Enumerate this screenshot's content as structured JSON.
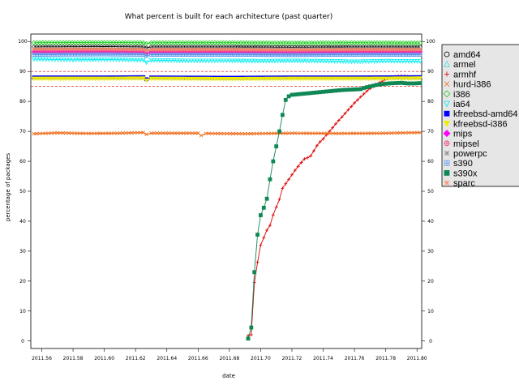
{
  "chart_data": {
    "type": "line",
    "title": "What percent is built for each architecture (past quarter)",
    "xlabel": "date",
    "ylabel": "percentage of packages",
    "xlim": [
      2011.553,
      2011.803
    ],
    "ylim": [
      -2.5,
      102.5
    ],
    "x_ticks": [
      "2011.56",
      "2011.58",
      "2011.60",
      "2011.62",
      "2011.64",
      "2011.66",
      "2011.68",
      "2011.70",
      "2011.72",
      "2011.74",
      "2011.76",
      "2011.78",
      "2011.80"
    ],
    "y_ticks": [
      "0",
      "10",
      "20",
      "30",
      "40",
      "50",
      "60",
      "70",
      "80",
      "90",
      "100"
    ],
    "reference_lines": [
      90,
      85
    ],
    "reference_line_color": "#dd0000",
    "grid": false,
    "legend_position": "right",
    "series": [
      {
        "name": "amd64",
        "color": "#000000",
        "symbol": "circle",
        "points": [
          [
            2011.555,
            98.2
          ],
          [
            2011.6,
            98.3
          ],
          [
            2011.625,
            98.2
          ],
          [
            2011.627,
            97.9
          ],
          [
            2011.63,
            98.2
          ],
          [
            2011.68,
            98.2
          ],
          [
            2011.72,
            98.1
          ],
          [
            2011.76,
            98.2
          ],
          [
            2011.802,
            98.2
          ]
        ]
      },
      {
        "name": "armel",
        "color": "#44dddd",
        "symbol": "triangle",
        "points": [
          [
            2011.555,
            97.2
          ],
          [
            2011.6,
            97.1
          ],
          [
            2011.625,
            97.1
          ],
          [
            2011.627,
            96.6
          ],
          [
            2011.63,
            97.1
          ],
          [
            2011.68,
            97.1
          ],
          [
            2011.72,
            97.0
          ],
          [
            2011.76,
            97.1
          ],
          [
            2011.802,
            97.0
          ]
        ]
      },
      {
        "name": "armhf",
        "color": "#dd0000",
        "symbol": "plus",
        "points": [
          [
            2011.692,
            1.8
          ],
          [
            2011.694,
            2.1
          ],
          [
            2011.696,
            19.5
          ],
          [
            2011.698,
            26.3
          ],
          [
            2011.7,
            32.0
          ],
          [
            2011.702,
            34.5
          ],
          [
            2011.704,
            37.0
          ],
          [
            2011.706,
            38.6
          ],
          [
            2011.708,
            42.1
          ],
          [
            2011.71,
            44.7
          ],
          [
            2011.712,
            47.3
          ],
          [
            2011.714,
            51.0
          ],
          [
            2011.716,
            52.5
          ],
          [
            2011.718,
            54.0
          ],
          [
            2011.72,
            55.5
          ],
          [
            2011.722,
            57.0
          ],
          [
            2011.724,
            58.3
          ],
          [
            2011.726,
            59.6
          ],
          [
            2011.728,
            60.8
          ],
          [
            2011.73,
            61.2
          ],
          [
            2011.732,
            61.8
          ],
          [
            2011.734,
            63.5
          ],
          [
            2011.736,
            65.2
          ],
          [
            2011.738,
            66.5
          ],
          [
            2011.74,
            67.5
          ],
          [
            2011.742,
            68.8
          ],
          [
            2011.744,
            70.0
          ],
          [
            2011.746,
            71.2
          ],
          [
            2011.748,
            72.5
          ],
          [
            2011.75,
            73.7
          ],
          [
            2011.752,
            74.8
          ],
          [
            2011.754,
            76.0
          ],
          [
            2011.756,
            77.2
          ],
          [
            2011.758,
            78.3
          ],
          [
            2011.76,
            79.5
          ],
          [
            2011.762,
            80.5
          ],
          [
            2011.764,
            81.5
          ],
          [
            2011.766,
            82.5
          ],
          [
            2011.768,
            83.5
          ],
          [
            2011.77,
            84.3
          ],
          [
            2011.772,
            85.0
          ],
          [
            2011.774,
            85.7
          ],
          [
            2011.776,
            86.3
          ],
          [
            2011.778,
            86.8
          ],
          [
            2011.78,
            87.3
          ],
          [
            2011.782,
            87.6
          ],
          [
            2011.784,
            88.0
          ],
          [
            2011.786,
            88.3
          ],
          [
            2011.788,
            88.5
          ],
          [
            2011.79,
            88.6
          ],
          [
            2011.792,
            88.5
          ],
          [
            2011.794,
            88.3
          ],
          [
            2011.796,
            88.0
          ],
          [
            2011.798,
            87.8
          ],
          [
            2011.8,
            87.7
          ]
        ]
      },
      {
        "name": "hurd-i386",
        "color": "#ee6611",
        "symbol": "cross",
        "points": [
          [
            2011.555,
            69.2
          ],
          [
            2011.57,
            69.5
          ],
          [
            2011.59,
            69.3
          ],
          [
            2011.61,
            69.4
          ],
          [
            2011.625,
            69.6
          ],
          [
            2011.627,
            69.0
          ],
          [
            2011.63,
            69.4
          ],
          [
            2011.66,
            69.4
          ],
          [
            2011.662,
            68.6
          ],
          [
            2011.665,
            69.3
          ],
          [
            2011.69,
            69.2
          ],
          [
            2011.72,
            69.4
          ],
          [
            2011.75,
            69.3
          ],
          [
            2011.78,
            69.4
          ],
          [
            2011.802,
            69.6
          ]
        ]
      },
      {
        "name": "i386",
        "color": "#22cc22",
        "symbol": "diamond-o",
        "points": [
          [
            2011.555,
            99.6
          ],
          [
            2011.6,
            99.7
          ],
          [
            2011.625,
            99.6
          ],
          [
            2011.627,
            99.3
          ],
          [
            2011.63,
            99.6
          ],
          [
            2011.68,
            99.6
          ],
          [
            2011.72,
            99.5
          ],
          [
            2011.76,
            99.6
          ],
          [
            2011.802,
            99.5
          ]
        ]
      },
      {
        "name": "ia64",
        "color": "#00eeee",
        "symbol": "tri-down",
        "points": [
          [
            2011.555,
            94.1
          ],
          [
            2011.58,
            93.9
          ],
          [
            2011.6,
            94.0
          ],
          [
            2011.625,
            93.8
          ],
          [
            2011.627,
            93.0
          ],
          [
            2011.63,
            93.8
          ],
          [
            2011.65,
            93.6
          ],
          [
            2011.68,
            93.6
          ],
          [
            2011.7,
            93.5
          ],
          [
            2011.72,
            93.6
          ],
          [
            2011.74,
            93.5
          ],
          [
            2011.76,
            93.3
          ],
          [
            2011.78,
            93.5
          ],
          [
            2011.802,
            93.4
          ]
        ]
      },
      {
        "name": "kfreebsd-amd64",
        "color": "#0000ff",
        "symbol": "square-filled",
        "points": [
          [
            2011.555,
            88.0
          ],
          [
            2011.6,
            88.0
          ],
          [
            2011.625,
            88.1
          ],
          [
            2011.627,
            87.4
          ],
          [
            2011.63,
            88.0
          ],
          [
            2011.68,
            87.9
          ],
          [
            2011.72,
            88.0
          ],
          [
            2011.76,
            88.0
          ],
          [
            2011.802,
            88.1
          ]
        ]
      },
      {
        "name": "kfreebsd-i386",
        "color": "#eeee00",
        "symbol": "tri-down-filled",
        "points": [
          [
            2011.555,
            87.6
          ],
          [
            2011.6,
            87.6
          ],
          [
            2011.625,
            87.7
          ],
          [
            2011.627,
            87.0
          ],
          [
            2011.63,
            87.6
          ],
          [
            2011.68,
            87.5
          ],
          [
            2011.72,
            87.6
          ],
          [
            2011.76,
            87.6
          ],
          [
            2011.802,
            87.7
          ]
        ]
      },
      {
        "name": "mips",
        "color": "#ff00ff",
        "symbol": "diamond-filled",
        "points": [
          [
            2011.555,
            96.6
          ],
          [
            2011.6,
            96.7
          ],
          [
            2011.625,
            96.6
          ],
          [
            2011.627,
            96.2
          ],
          [
            2011.63,
            96.6
          ],
          [
            2011.68,
            96.6
          ],
          [
            2011.72,
            96.5
          ],
          [
            2011.76,
            96.6
          ],
          [
            2011.802,
            96.6
          ]
        ]
      },
      {
        "name": "mipsel",
        "color": "#ee4488",
        "symbol": "circle-plus",
        "points": [
          [
            2011.555,
            96.2
          ],
          [
            2011.6,
            96.3
          ],
          [
            2011.625,
            96.2
          ],
          [
            2011.627,
            95.8
          ],
          [
            2011.63,
            96.2
          ],
          [
            2011.68,
            96.2
          ],
          [
            2011.72,
            96.1
          ],
          [
            2011.76,
            96.2
          ],
          [
            2011.802,
            96.2
          ]
        ]
      },
      {
        "name": "powerpc",
        "color": "#888888",
        "symbol": "star",
        "points": [
          [
            2011.555,
            97.6
          ],
          [
            2011.6,
            97.6
          ],
          [
            2011.625,
            97.5
          ],
          [
            2011.627,
            97.1
          ],
          [
            2011.63,
            97.5
          ],
          [
            2011.68,
            97.5
          ],
          [
            2011.72,
            97.4
          ],
          [
            2011.76,
            97.5
          ],
          [
            2011.802,
            97.5
          ]
        ]
      },
      {
        "name": "s390",
        "color": "#5599ee",
        "symbol": "square-plus",
        "points": [
          [
            2011.555,
            95.6
          ],
          [
            2011.6,
            95.7
          ],
          [
            2011.625,
            95.6
          ],
          [
            2011.627,
            95.2
          ],
          [
            2011.63,
            95.6
          ],
          [
            2011.68,
            95.6
          ],
          [
            2011.72,
            95.5
          ],
          [
            2011.76,
            95.6
          ],
          [
            2011.802,
            95.6
          ]
        ]
      },
      {
        "name": "s390x",
        "color": "#118855",
        "symbol": "square-x",
        "points": [
          [
            2011.692,
            0.8
          ],
          [
            2011.694,
            4.5
          ],
          [
            2011.696,
            23.0
          ],
          [
            2011.698,
            35.5
          ],
          [
            2011.7,
            42.0
          ],
          [
            2011.702,
            44.5
          ],
          [
            2011.704,
            47.5
          ],
          [
            2011.706,
            54.0
          ],
          [
            2011.708,
            60.0
          ],
          [
            2011.71,
            65.0
          ],
          [
            2011.712,
            70.0
          ],
          [
            2011.714,
            75.5
          ],
          [
            2011.716,
            80.5
          ],
          [
            2011.718,
            81.7
          ],
          [
            2011.72,
            82.2
          ],
          [
            2011.724,
            82.4
          ],
          [
            2011.728,
            82.6
          ],
          [
            2011.732,
            82.8
          ],
          [
            2011.736,
            83.0
          ],
          [
            2011.74,
            83.2
          ],
          [
            2011.744,
            83.4
          ],
          [
            2011.748,
            83.6
          ],
          [
            2011.752,
            83.8
          ],
          [
            2011.756,
            83.9
          ],
          [
            2011.76,
            84.0
          ],
          [
            2011.764,
            84.1
          ],
          [
            2011.766,
            84.5
          ],
          [
            2011.77,
            85.0
          ],
          [
            2011.774,
            85.5
          ],
          [
            2011.778,
            85.8
          ],
          [
            2011.782,
            86.0
          ],
          [
            2011.786,
            86.1
          ],
          [
            2011.79,
            86.2
          ],
          [
            2011.794,
            86.0
          ],
          [
            2011.798,
            86.0
          ],
          [
            2011.802,
            86.1
          ]
        ]
      },
      {
        "name": "sparc",
        "color": "#ff8866",
        "symbol": "asterisk",
        "points": [
          [
            2011.555,
            97.4
          ],
          [
            2011.6,
            97.4
          ],
          [
            2011.625,
            97.3
          ],
          [
            2011.627,
            96.9
          ],
          [
            2011.63,
            97.3
          ],
          [
            2011.68,
            97.3
          ],
          [
            2011.72,
            97.2
          ],
          [
            2011.76,
            97.3
          ],
          [
            2011.802,
            97.3
          ]
        ]
      }
    ]
  }
}
